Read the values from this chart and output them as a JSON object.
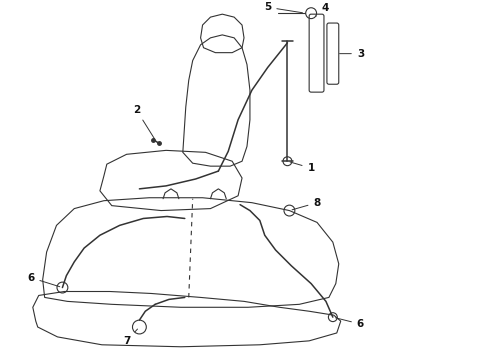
{
  "bg_color": "#ffffff",
  "line_color": "#333333",
  "label_color": "#111111",
  "figsize": [
    4.9,
    3.6
  ],
  "dpi": 100,
  "lw_thin": 0.8,
  "lw_med": 1.1
}
